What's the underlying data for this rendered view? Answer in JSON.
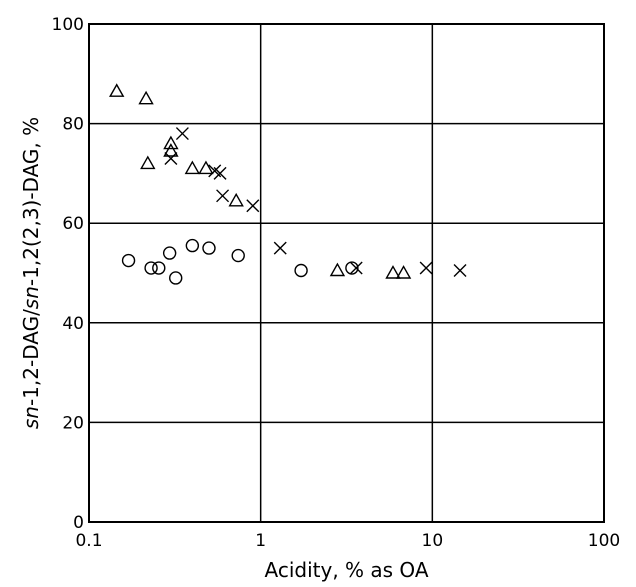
{
  "chart_data": {
    "type": "scatter",
    "xscale": "log",
    "xlim": [
      0.1,
      100
    ],
    "ylim": [
      0,
      100
    ],
    "grid": true,
    "xlabel": "Acidity, % as OA",
    "ylabel_parts": [
      {
        "text": "sn",
        "italic": true
      },
      {
        "text": "-1,2-DAG/",
        "italic": false
      },
      {
        "text": "sn",
        "italic": true
      },
      {
        "text": "-1,2(2,3)-DAG, %",
        "italic": false
      }
    ],
    "xticks": [
      {
        "value": 0.1,
        "label": "0.1"
      },
      {
        "value": 1,
        "label": "1"
      },
      {
        "value": 10,
        "label": "10"
      },
      {
        "value": 100,
        "label": "100"
      }
    ],
    "yticks": [
      {
        "value": 0,
        "label": "0"
      },
      {
        "value": 20,
        "label": "20"
      },
      {
        "value": 40,
        "label": "40"
      },
      {
        "value": 60,
        "label": "60"
      },
      {
        "value": 80,
        "label": "80"
      },
      {
        "value": 100,
        "label": "100"
      }
    ],
    "series": [
      {
        "marker": "triangle",
        "points": [
          {
            "x": 0.145,
            "y": 86.5
          },
          {
            "x": 0.215,
            "y": 85
          },
          {
            "x": 0.22,
            "y": 72
          },
          {
            "x": 0.3,
            "y": 76
          },
          {
            "x": 0.3,
            "y": 74.5
          },
          {
            "x": 0.4,
            "y": 71
          },
          {
            "x": 0.48,
            "y": 71
          },
          {
            "x": 0.72,
            "y": 64.5
          },
          {
            "x": 2.8,
            "y": 50.5
          },
          {
            "x": 5.9,
            "y": 50
          },
          {
            "x": 6.8,
            "y": 50
          }
        ]
      },
      {
        "marker": "cross",
        "points": [
          {
            "x": 0.35,
            "y": 78
          },
          {
            "x": 0.3,
            "y": 73
          },
          {
            "x": 0.54,
            "y": 70.5
          },
          {
            "x": 0.58,
            "y": 70
          },
          {
            "x": 0.6,
            "y": 65.5
          },
          {
            "x": 0.9,
            "y": 63.5
          },
          {
            "x": 1.3,
            "y": 55
          },
          {
            "x": 3.6,
            "y": 51
          },
          {
            "x": 9.2,
            "y": 51
          },
          {
            "x": 14.5,
            "y": 50.5
          }
        ]
      },
      {
        "marker": "circle",
        "points": [
          {
            "x": 0.17,
            "y": 52.5
          },
          {
            "x": 0.23,
            "y": 51
          },
          {
            "x": 0.255,
            "y": 51
          },
          {
            "x": 0.295,
            "y": 54
          },
          {
            "x": 0.32,
            "y": 49
          },
          {
            "x": 0.4,
            "y": 55.5
          },
          {
            "x": 0.5,
            "y": 55
          },
          {
            "x": 0.74,
            "y": 53.5
          },
          {
            "x": 1.72,
            "y": 50.5
          },
          {
            "x": 3.4,
            "y": 51
          }
        ]
      }
    ]
  }
}
